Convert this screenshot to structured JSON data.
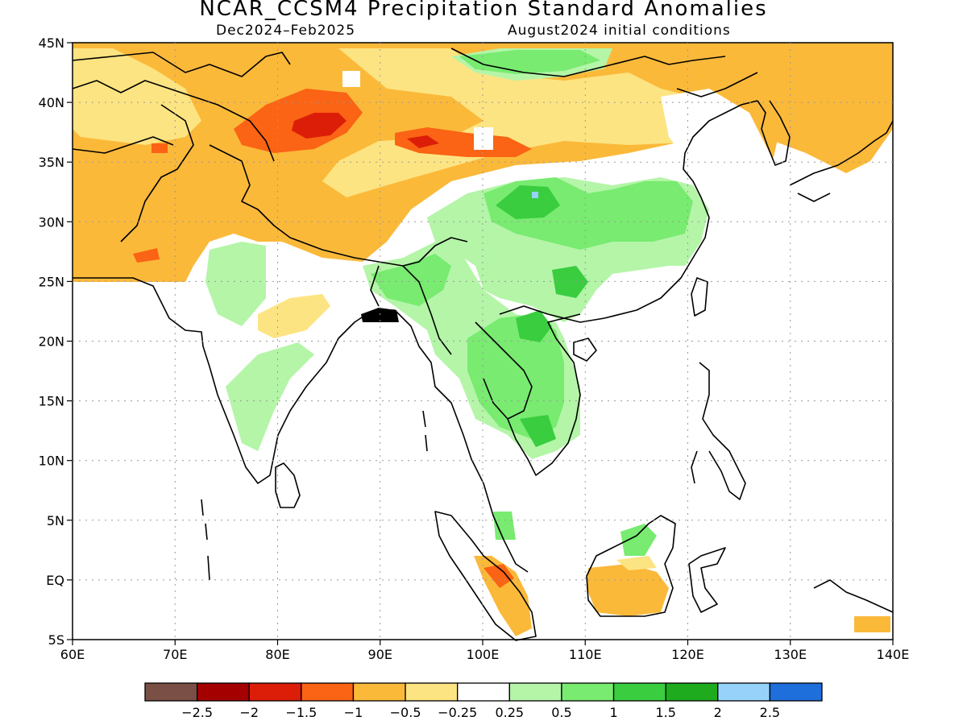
{
  "title": "NCAR_CCSM4 Precipitation Standard Anomalies",
  "subtitle_left": "Dec2024–Feb2025",
  "subtitle_right": "August2024 initial conditions",
  "map": {
    "lon_range": [
      60,
      140
    ],
    "lat_range": [
      -5,
      45
    ],
    "lon_ticks": [
      "60E",
      "70E",
      "80E",
      "90E",
      "100E",
      "110E",
      "120E",
      "130E",
      "140E"
    ],
    "lat_ticks": [
      "45N",
      "40N",
      "35N",
      "30N",
      "25N",
      "20N",
      "15N",
      "10N",
      "5N",
      "EQ",
      "5S"
    ]
  },
  "colorbar": {
    "colors": [
      "#7a5046",
      "#a50000",
      "#dc1e08",
      "#fa6414",
      "#fbb93a",
      "#fde482",
      "#ffffff",
      "#b4f5a8",
      "#78eb70",
      "#39cd3f",
      "#1eac1e",
      "#96d2fa",
      "#1e6edc"
    ],
    "labels": [
      "−2.5",
      "−2",
      "−1.5",
      "−1",
      "−0.5",
      "−0.25",
      "0.25",
      "0.5",
      "1",
      "1.5",
      "2",
      "2.5"
    ]
  }
}
